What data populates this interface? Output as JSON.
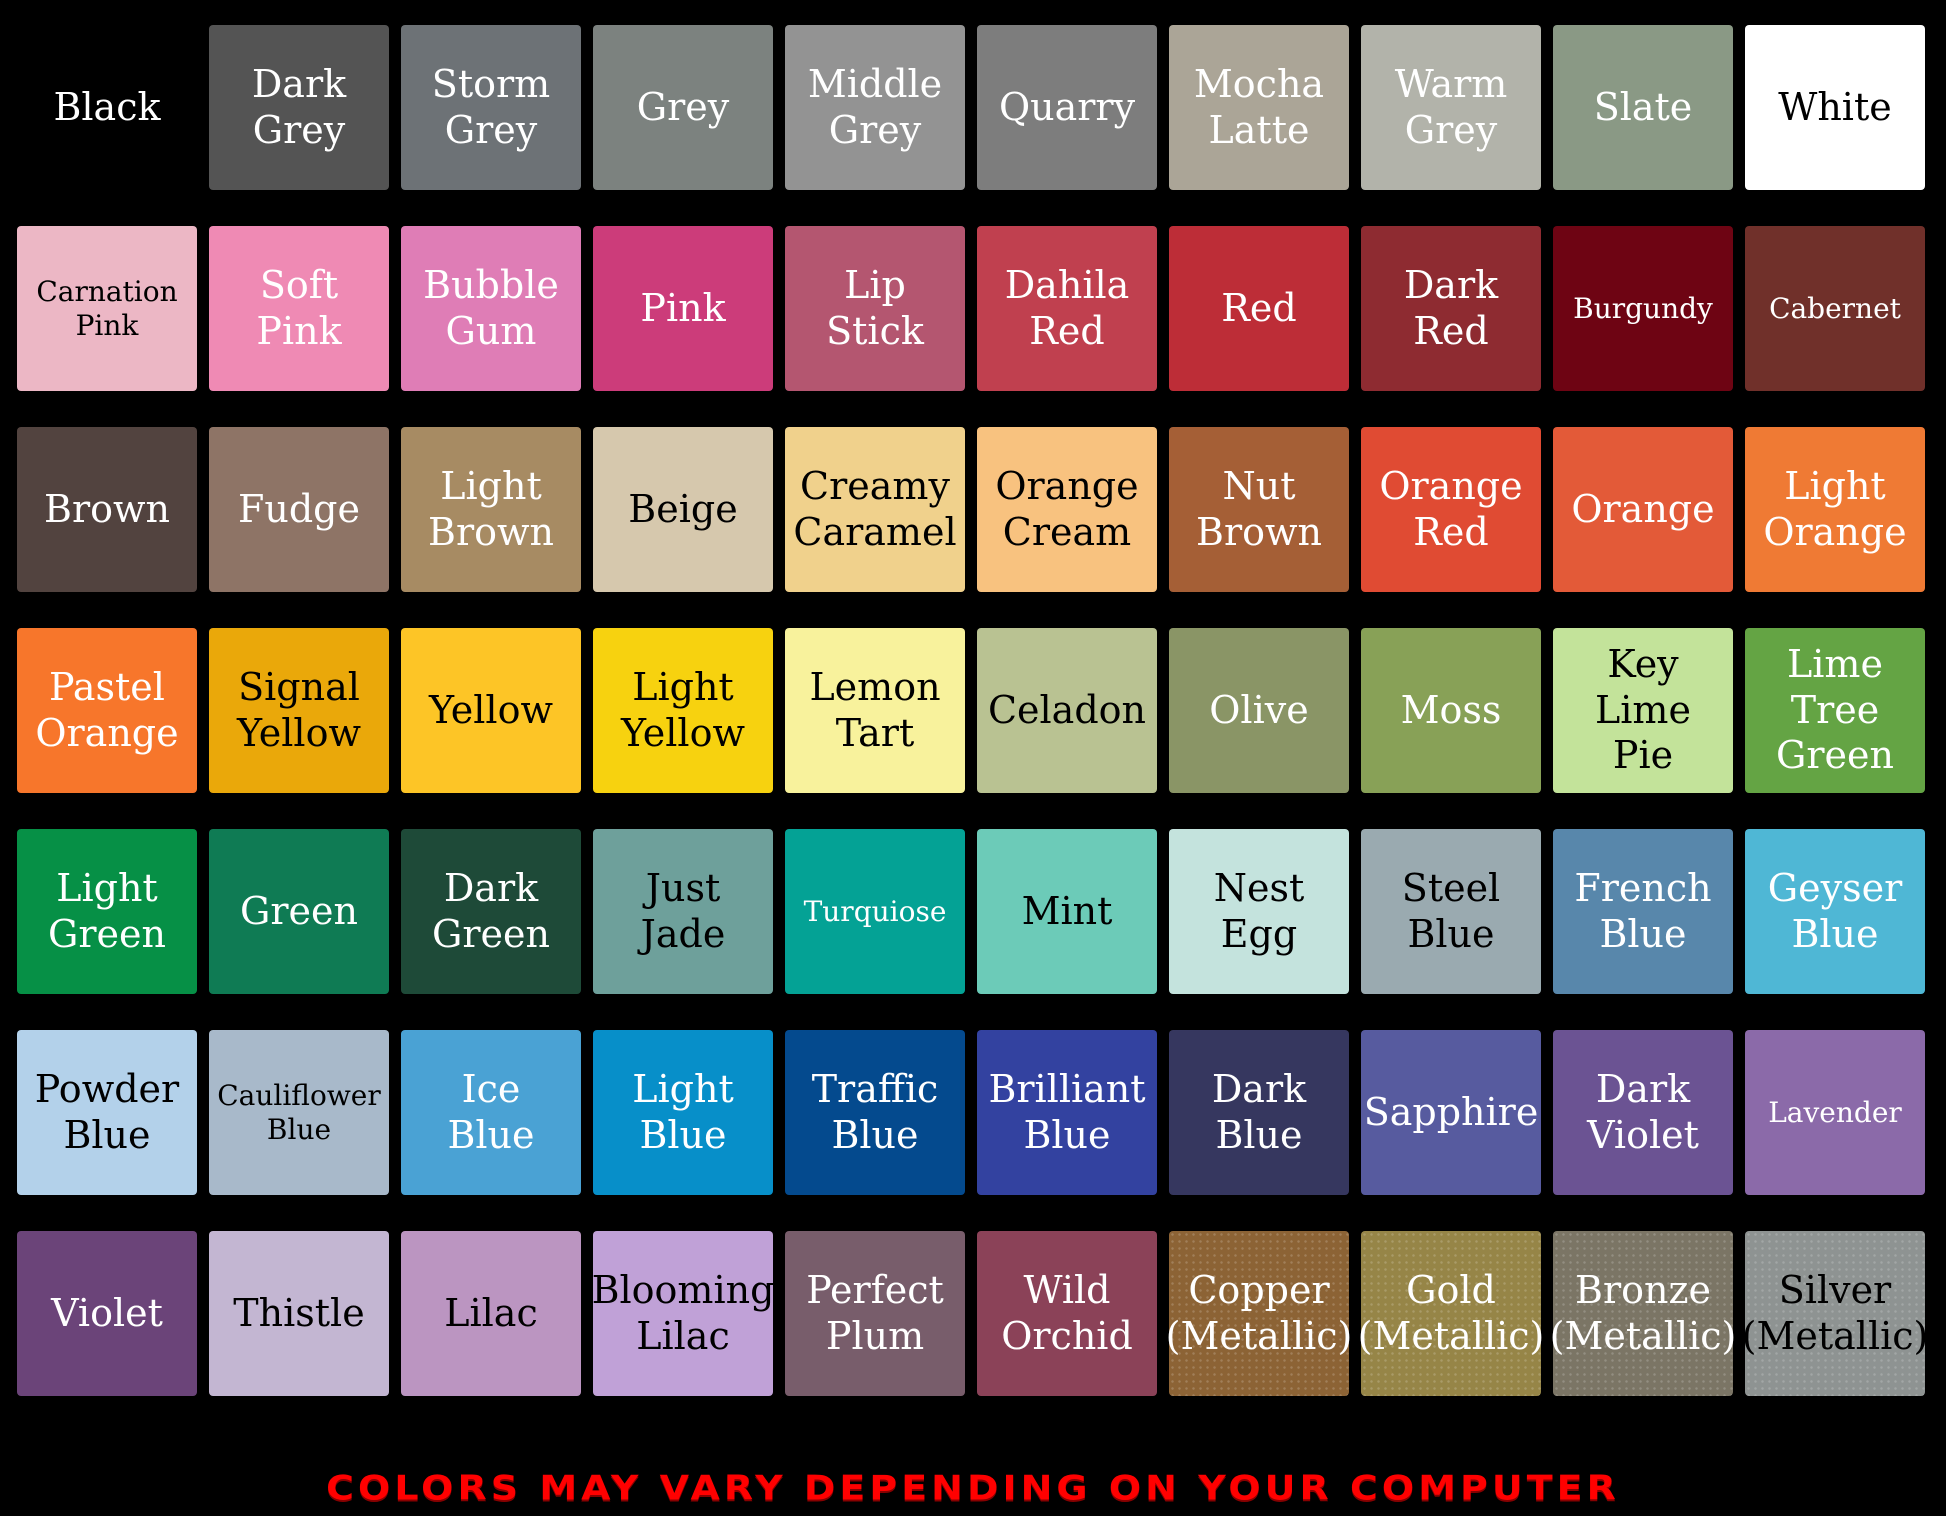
{
  "swatches": [
    {
      "name": "Black",
      "color": "#000000",
      "text": "light"
    },
    {
      "name": "Dark\nGrey",
      "color": "#545454",
      "text": "light"
    },
    {
      "name": "Storm\nGrey",
      "color": "#6d7276",
      "text": "light"
    },
    {
      "name": "Grey",
      "color": "#7c827f",
      "text": "light"
    },
    {
      "name": "Middle\nGrey",
      "color": "#939393",
      "text": "light"
    },
    {
      "name": "Quarry",
      "color": "#7d7d7d",
      "text": "light"
    },
    {
      "name": "Mocha\nLatte",
      "color": "#aba597",
      "text": "light"
    },
    {
      "name": "Warm\nGrey",
      "color": "#b2b3aa",
      "text": "light"
    },
    {
      "name": "Slate",
      "color": "#8a9985",
      "text": "light"
    },
    {
      "name": "White",
      "color": "#ffffff",
      "text": "dark"
    },
    {
      "name": "Carnation\nPink",
      "color": "#ecb7c5",
      "text": "dark",
      "small": true
    },
    {
      "name": "Soft\nPink",
      "color": "#ef8ab4",
      "text": "light"
    },
    {
      "name": "Bubble\nGum",
      "color": "#df7db6",
      "text": "light"
    },
    {
      "name": "Pink",
      "color": "#cc3c7a",
      "text": "light"
    },
    {
      "name": "Lip\nStick",
      "color": "#b45670",
      "text": "light"
    },
    {
      "name": "Dahila\nRed",
      "color": "#c0404f",
      "text": "light"
    },
    {
      "name": "Red",
      "color": "#bd2d37",
      "text": "light"
    },
    {
      "name": "Dark\nRed",
      "color": "#8e2b31",
      "text": "light"
    },
    {
      "name": "Burgundy",
      "color": "#6e0413",
      "text": "light",
      "small": true
    },
    {
      "name": "Cabernet",
      "color": "#70302a",
      "text": "light",
      "small": true
    },
    {
      "name": "Brown",
      "color": "#52433f",
      "text": "light"
    },
    {
      "name": "Fudge",
      "color": "#8e7466",
      "text": "light"
    },
    {
      "name": "Light\nBrown",
      "color": "#a78b63",
      "text": "light"
    },
    {
      "name": "Beige",
      "color": "#d6c8ad",
      "text": "dark"
    },
    {
      "name": "Creamy\nCaramel",
      "color": "#f0d18c",
      "text": "dark"
    },
    {
      "name": "Orange\nCream",
      "color": "#f8c27f",
      "text": "dark"
    },
    {
      "name": "Nut\nBrown",
      "color": "#a55f36",
      "text": "light"
    },
    {
      "name": "Orange\nRed",
      "color": "#e04b33",
      "text": "light"
    },
    {
      "name": "Orange",
      "color": "#e35a38",
      "text": "light"
    },
    {
      "name": "Light\nOrange",
      "color": "#ef7a34",
      "text": "light"
    },
    {
      "name": "Pastel\nOrange",
      "color": "#f7762b",
      "text": "light"
    },
    {
      "name": "Signal\nYellow",
      "color": "#eaa80a",
      "text": "dark"
    },
    {
      "name": "Yellow",
      "color": "#fdc526",
      "text": "dark"
    },
    {
      "name": "Light\nYellow",
      "color": "#f7d20f",
      "text": "dark"
    },
    {
      "name": "Lemon\nTart",
      "color": "#f8f29c",
      "text": "dark"
    },
    {
      "name": "Celadon",
      "color": "#b9c292",
      "text": "dark"
    },
    {
      "name": "Olive",
      "color": "#8a9566",
      "text": "light"
    },
    {
      "name": "Moss",
      "color": "#88a157",
      "text": "light"
    },
    {
      "name": "Key\nLime\nPie",
      "color": "#c3e39a",
      "text": "dark"
    },
    {
      "name": "Lime\nTree\nGreen",
      "color": "#64a444",
      "text": "light"
    },
    {
      "name": "Light\nGreen",
      "color": "#069046",
      "text": "light"
    },
    {
      "name": "Green",
      "color": "#0f7b54",
      "text": "light"
    },
    {
      "name": "Dark\nGreen",
      "color": "#1e4a38",
      "text": "light"
    },
    {
      "name": "Just\nJade",
      "color": "#6ea09b",
      "text": "dark"
    },
    {
      "name": "Turquiose",
      "color": "#04a295",
      "text": "light",
      "small": true
    },
    {
      "name": "Mint",
      "color": "#6ccbb8",
      "text": "dark"
    },
    {
      "name": "Nest\nEgg",
      "color": "#c4e3dd",
      "text": "dark"
    },
    {
      "name": "Steel\nBlue",
      "color": "#9aaab0",
      "text": "dark"
    },
    {
      "name": "French\nBlue",
      "color": "#5887ab",
      "text": "light"
    },
    {
      "name": "Geyser\nBlue",
      "color": "#4fb7d5",
      "text": "light"
    },
    {
      "name": "Powder\nBlue",
      "color": "#b3d1ea",
      "text": "dark"
    },
    {
      "name": "Cauliflower\nBlue",
      "color": "#a8b9ca",
      "text": "dark",
      "small": true
    },
    {
      "name": "Ice\nBlue",
      "color": "#4aa2d4",
      "text": "light"
    },
    {
      "name": "Light\nBlue",
      "color": "#078fc9",
      "text": "light"
    },
    {
      "name": "Traffic\nBlue",
      "color": "#044a8e",
      "text": "light"
    },
    {
      "name": "Brilliant\nBlue",
      "color": "#3342a0",
      "text": "light"
    },
    {
      "name": "Dark\nBlue",
      "color": "#36375f",
      "text": "light"
    },
    {
      "name": "Sapphire",
      "color": "#575b9f",
      "text": "light"
    },
    {
      "name": "Dark\nViolet",
      "color": "#6b5393",
      "text": "light"
    },
    {
      "name": "Lavender",
      "color": "#8b6aa9",
      "text": "light",
      "small": true
    },
    {
      "name": "Violet",
      "color": "#6b4479",
      "text": "light"
    },
    {
      "name": "Thistle",
      "color": "#c3b6d2",
      "text": "dark"
    },
    {
      "name": "Lilac",
      "color": "#bb95c1",
      "text": "dark"
    },
    {
      "name": "Blooming\nLilac",
      "color": "#c0a1d7",
      "text": "dark"
    },
    {
      "name": "Perfect\nPlum",
      "color": "#785d6b",
      "text": "light"
    },
    {
      "name": "Wild\nOrchid",
      "color": "#8b4258",
      "text": "light"
    },
    {
      "name": "Copper\n(Metallic)",
      "color": "#8c6335",
      "text": "light",
      "metal": true
    },
    {
      "name": "Gold\n(Metallic)",
      "color": "#968547",
      "text": "light",
      "metal": true
    },
    {
      "name": "Bronze\n(Metallic)",
      "color": "#7b7565",
      "text": "light",
      "metal": true
    },
    {
      "name": "Silver\n(Metallic)",
      "color": "#8e9392",
      "text": "dark",
      "metal": true
    }
  ],
  "footer_note": "COLORS MAY VARY DEPENDING ON YOUR COMPUTER",
  "footer_color": "#ff0000"
}
